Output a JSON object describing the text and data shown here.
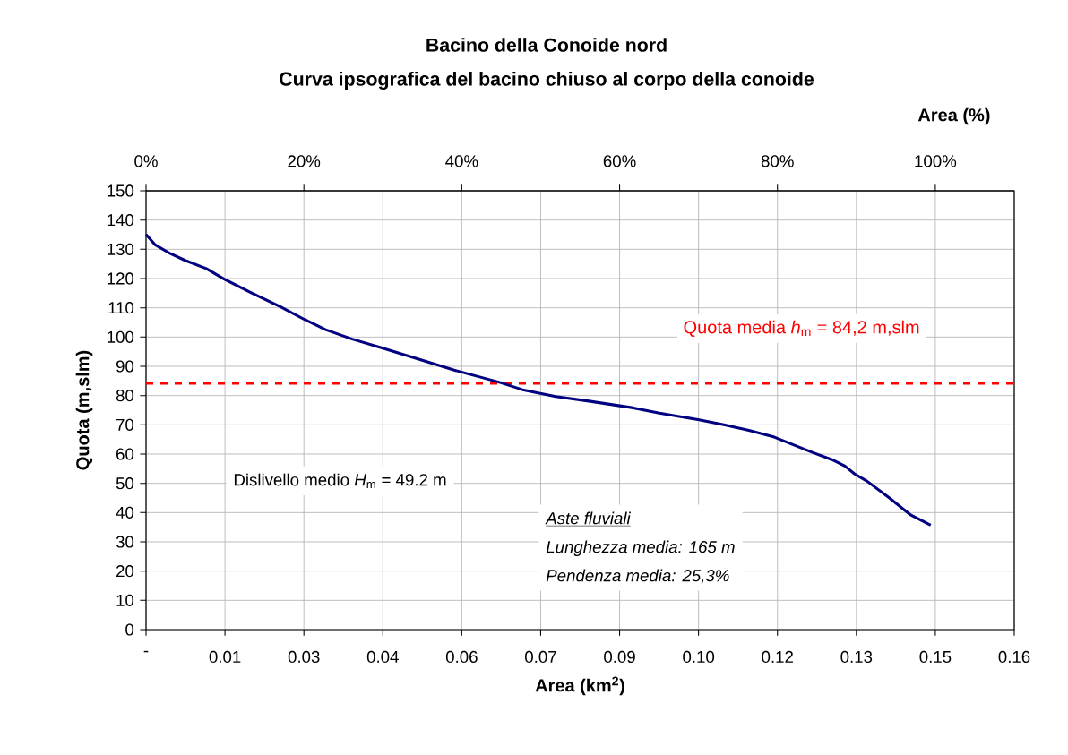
{
  "chart_data": {
    "type": "line",
    "title": "Bacino della Conoide nord",
    "subtitle": "Curva ipsografica del bacino chiuso al corpo della conoide",
    "xlabel": "Area (km$^{2}$)",
    "ylabel": "Quota (m,slm)",
    "x2label": "Area  (%)",
    "x": [
      0,
      0.0017,
      0.0045,
      0.0072,
      0.0111,
      0.0144,
      0.0193,
      0.0248,
      0.0292,
      0.0331,
      0.038,
      0.0435,
      0.0501,
      0.0568,
      0.065,
      0.0694,
      0.0755,
      0.0816,
      0.0898,
      0.0946,
      0.1017,
      0.1063,
      0.1111,
      0.1158,
      0.1229,
      0.1264,
      0.1288,
      0.1306,
      0.1329,
      0.137,
      0.1409,
      0.1446
    ],
    "series": [
      {
        "color": "#000080",
        "values": [
          135.1,
          131.5,
          128.5,
          126.2,
          123.4,
          119.8,
          115.2,
          110.3,
          106.0,
          102.5,
          99.3,
          96.3,
          92.5,
          88.7,
          84.6,
          82.0,
          79.7,
          78.1,
          75.8,
          74.0,
          71.8,
          70.1,
          68.1,
          65.8,
          60.5,
          58.1,
          55.9,
          53.2,
          50.7,
          45.0,
          39.2,
          35.7
        ]
      }
    ],
    "xlim": [
      0,
      0.16
    ],
    "ylim": [
      0,
      150
    ],
    "xticks": [
      {
        "value": 0,
        "label": "-"
      },
      {
        "value": 0.014545,
        "label": "0.01"
      },
      {
        "value": 0.029091,
        "label": "0.03"
      },
      {
        "value": 0.043636,
        "label": "0.04"
      },
      {
        "value": 0.058182,
        "label": "0.06"
      },
      {
        "value": 0.072727,
        "label": "0.07"
      },
      {
        "value": 0.087273,
        "label": "0.09"
      },
      {
        "value": 0.101818,
        "label": "0.10"
      },
      {
        "value": 0.116364,
        "label": "0.12"
      },
      {
        "value": 0.130909,
        "label": "0.13"
      },
      {
        "value": 0.145455,
        "label": "0.15"
      },
      {
        "value": 0.16,
        "label": "0.16"
      }
    ],
    "yticks": [
      0,
      10,
      20,
      30,
      40,
      50,
      60,
      70,
      80,
      90,
      100,
      110,
      120,
      130,
      140,
      150
    ],
    "x2lim": [
      0,
      110
    ],
    "x2ticks": [
      {
        "value": 0,
        "label": "0%"
      },
      {
        "value": 20,
        "label": "20%"
      },
      {
        "value": 40,
        "label": "40%"
      },
      {
        "value": 60,
        "label": "60%"
      },
      {
        "value": 80,
        "label": "80%"
      },
      {
        "value": 100,
        "label": "100%"
      }
    ],
    "grid": true,
    "ref_lines": [
      {
        "axis": "y",
        "value": 84.2,
        "label": "Quota media  *h*$_{m}$ = 84,2  m,slm",
        "color": "#ff0000",
        "line_style": "dashed"
      }
    ],
    "annotations": [
      "Dislivello medio *H*$_{m}$ = 49.2 m",
      "Aste fluviali",
      "Lunghezza media: 165 m",
      "Pendenza media: 25,3%"
    ]
  }
}
